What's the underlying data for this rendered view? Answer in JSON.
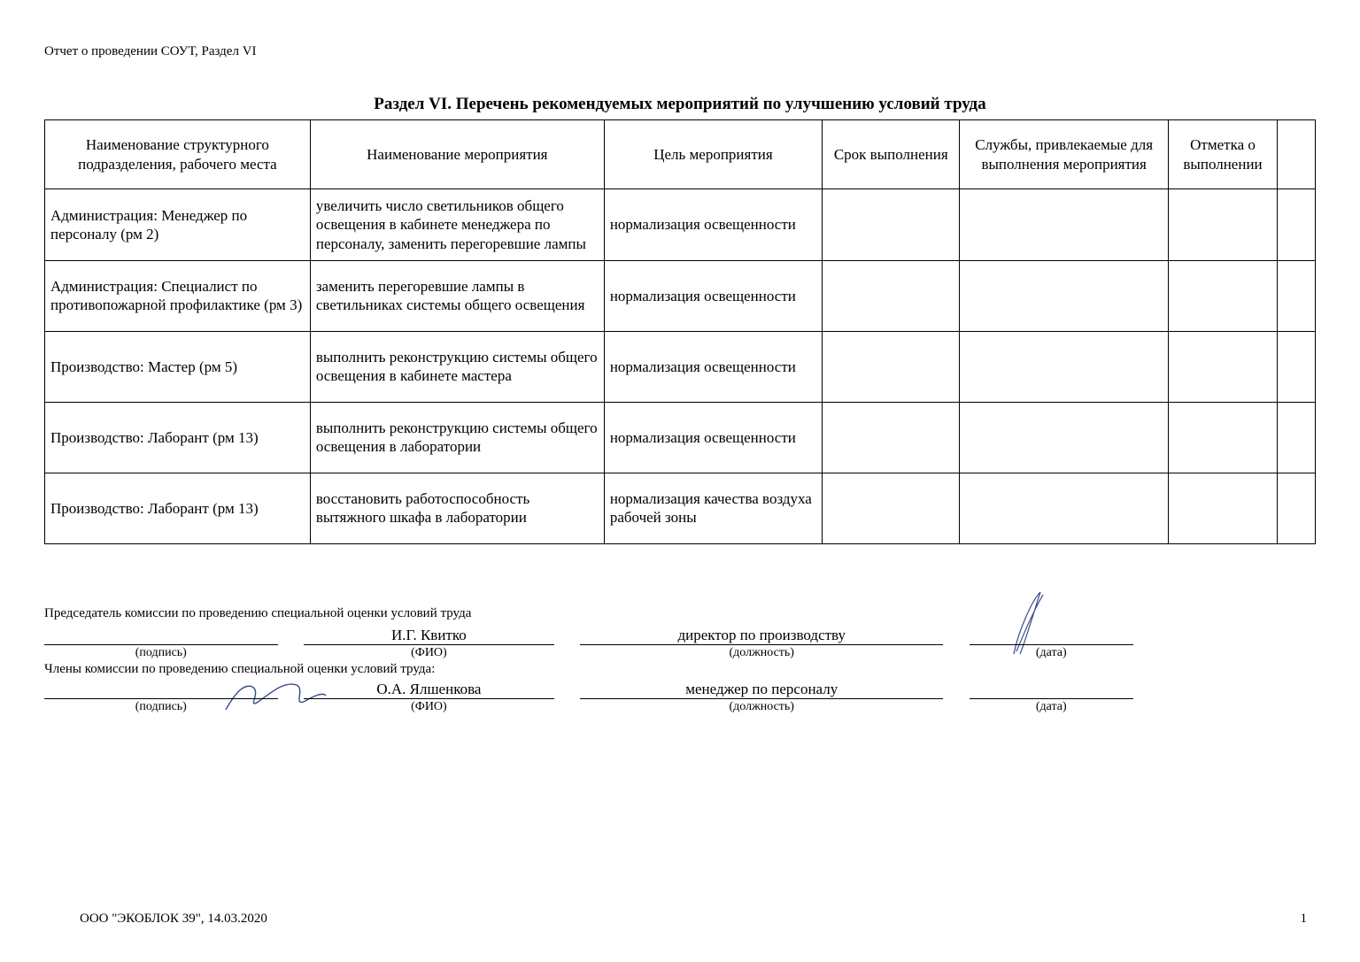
{
  "header_label": "Отчет о проведении СОУТ, Раздел VI",
  "title": "Раздел VI.  Перечень рекомендуемых мероприятий по улучшению условий труда",
  "table": {
    "columns": [
      "Наименование структурного подразделения, рабочего места",
      "Наименование мероприятия",
      "Цель мероприятия",
      "Срок выполнения",
      "Службы, привлекаемые для выполнения мероприятия",
      "Отметка о выполнении",
      ""
    ],
    "rows": [
      {
        "c1": "Администрация: Менеджер по персоналу (рм 2)",
        "c2": "увеличить число светильников общего освещения в кабинете менеджера по персоналу, заменить перегоревшие лампы",
        "c3": "нормализация освещенности",
        "c4": "",
        "c5": "",
        "c6": "",
        "c7": ""
      },
      {
        "c1": "Администрация: Специалист по противопожарной профилактике (рм 3)",
        "c2": "заменить перегоревшие лампы в светильниках системы общего освещения",
        "c3": "нормализация освещенности",
        "c4": "",
        "c5": "",
        "c6": "",
        "c7": ""
      },
      {
        "c1": "Производство: Мастер (рм 5)",
        "c2": "выполнить реконструкцию системы общего освещения в кабинете мастера",
        "c3": "нормализация освещенности",
        "c4": "",
        "c5": "",
        "c6": "",
        "c7": ""
      },
      {
        "c1": "Производство: Лаборант (рм 13)",
        "c2": "выполнить реконструкцию системы общего освещения в лаборатории",
        "c3": "нормализация освещенности",
        "c4": "",
        "c5": "",
        "c6": "",
        "c7": ""
      },
      {
        "c1": "Производство: Лаборант (рм 13)",
        "c2": "восстановить работоспособность вытяжного шкафа в лаборатории",
        "c3": "нормализация качества воздуха рабочей зоны",
        "c4": "",
        "c5": "",
        "c6": "",
        "c7": ""
      }
    ]
  },
  "signatures": {
    "chairman_heading": "Председатель комиссии по проведению специальной оценки условий труда",
    "members_heading": "Члены комиссии по проведению специальной оценки условий труда:",
    "labels": {
      "podpis": "(подпись)",
      "fio": "(ФИО)",
      "dolzh": "(должность)",
      "data": "(дата)"
    },
    "chairman": {
      "fio": "И.Г. Квитко",
      "dolzh": "директор по производству"
    },
    "member1": {
      "fio": "О.А. Ялшенкова",
      "dolzh": "менеджер по персоналу"
    }
  },
  "footer": {
    "org": "ООО \"ЭКОБЛОК 39\", 14.03.2020",
    "page": "1"
  }
}
